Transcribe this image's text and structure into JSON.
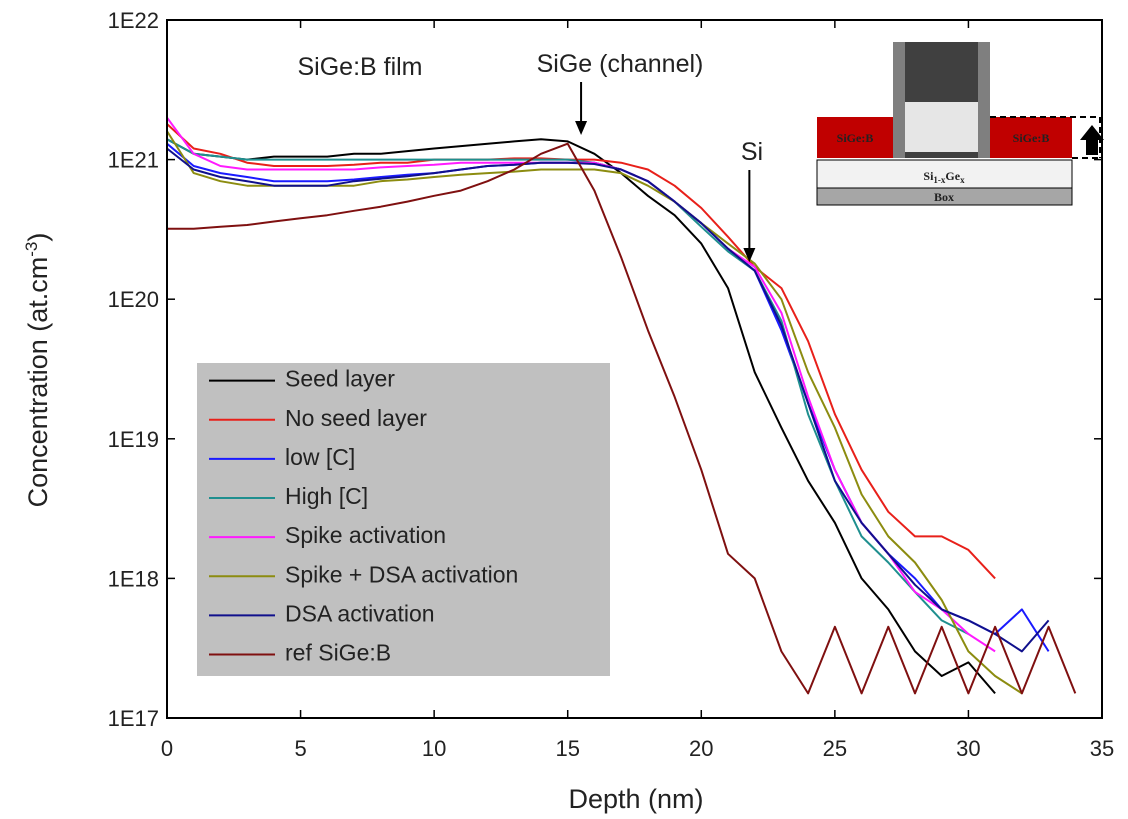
{
  "chart_data": {
    "type": "line",
    "x_label": "Depth (nm)",
    "y_label": [
      "Concentration (at.cm",
      "-3",
      ")"
    ],
    "xlim": [
      0,
      35
    ],
    "xticks": [
      0,
      5,
      10,
      15,
      20,
      25,
      30,
      35
    ],
    "ylim": [
      1e+17,
      1e+22
    ],
    "yticks": [
      {
        "value": 1e+17,
        "label": "1E17"
      },
      {
        "value": 1e+18,
        "label": "1E18"
      },
      {
        "value": 1e+19,
        "label": "1E19"
      },
      {
        "value": 1e+20,
        "label": "1E20"
      },
      {
        "value": 1e+21,
        "label": "1E21"
      },
      {
        "value": 1e+22,
        "label": "1E22"
      }
    ],
    "log_y": true,
    "legend": "lower left",
    "annotations": [
      {
        "text": "SiGe:B film"
      },
      {
        "text": "SiGe (channel)",
        "arrow_x": 15.5
      },
      {
        "text": "Si",
        "arrow_x": 21.8
      }
    ],
    "inset": {
      "left_label": "SiGe:B",
      "right_label": "SiGe:B",
      "layer_label": [
        "Si",
        "1-x",
        "Ge",
        "x"
      ],
      "box_label": "Box"
    },
    "x": [
      0,
      1,
      2,
      3,
      4,
      5,
      6,
      7,
      8,
      9,
      10,
      11,
      12,
      13,
      14,
      15,
      16,
      17,
      18,
      19,
      20,
      21,
      22,
      23,
      24,
      25,
      26,
      27,
      28,
      29,
      30,
      31,
      32,
      33,
      34
    ],
    "series": [
      {
        "name": "Seed layer",
        "color": "#000000",
        "values": [
          1.4e+21,
          1.1e+21,
          1.05e+21,
          1e+21,
          1.05e+21,
          1.05e+21,
          1.05e+21,
          1.1e+21,
          1.1e+21,
          1.15e+21,
          1.2e+21,
          1.25e+21,
          1.3e+21,
          1.35e+21,
          1.4e+21,
          1.35e+21,
          1.1e+21,
          8e+20,
          5.5e+20,
          4e+20,
          2.5e+20,
          1.2e+20,
          3e+19,
          1.2e+19,
          5e+18,
          2.5e+18,
          1e+18,
          6e+17,
          3e+17,
          2e+17,
          2.5e+17,
          1.5e+17,
          null,
          null,
          null
        ]
      },
      {
        "name": "No seed layer",
        "color": "#e8201a",
        "values": [
          1.8e+21,
          1.2e+21,
          1.1e+21,
          9.5e+20,
          9e+20,
          9e+20,
          9e+20,
          9.2e+20,
          9.5e+20,
          9.5e+20,
          1e+21,
          1e+21,
          1e+21,
          1.02e+21,
          1.02e+21,
          1e+21,
          1e+21,
          9.5e+20,
          8.5e+20,
          6.5e+20,
          4.5e+20,
          2.8e+20,
          1.7e+20,
          1.2e+20,
          5e+19,
          1.5e+19,
          6e+18,
          3e+18,
          2e+18,
          2e+18,
          1.6e+18,
          1e+18,
          null,
          null,
          null
        ]
      },
      {
        "name": "low [C]",
        "color": "#1a1aff",
        "values": [
          1.3e+21,
          9e+20,
          8e+20,
          7.5e+20,
          7e+20,
          7e+20,
          7e+20,
          7.2e+20,
          7.5e+20,
          7.8e+20,
          8e+20,
          8.5e+20,
          9e+20,
          9.2e+20,
          9.5e+20,
          9.5e+20,
          9.5e+20,
          8.5e+20,
          7e+20,
          5e+20,
          3.5e+20,
          2.3e+20,
          1.6e+20,
          6e+19,
          1.8e+19,
          6e+18,
          2.5e+18,
          1.5e+18,
          1e+18,
          6e+17,
          5e+17,
          4e+17,
          6e+17,
          3e+17,
          null
        ]
      },
      {
        "name": "High [C]",
        "color": "#1f8f8f",
        "values": [
          1.4e+21,
          1.1e+21,
          1.05e+21,
          1e+21,
          1e+21,
          1e+21,
          1e+21,
          1e+21,
          1e+21,
          1e+21,
          1e+21,
          1e+21,
          1e+21,
          1e+21,
          1e+21,
          1e+21,
          9.5e+20,
          8.5e+20,
          7e+20,
          5e+20,
          3.3e+20,
          2.2e+20,
          1.6e+20,
          7e+19,
          1.5e+19,
          5e+18,
          2e+18,
          1.3e+18,
          8e+17,
          5e+17,
          4e+17,
          null,
          null,
          null,
          null
        ]
      },
      {
        "name": "Spike activation",
        "color": "#ff1aff",
        "values": [
          2e+21,
          1.1e+21,
          9e+20,
          8.5e+20,
          8.5e+20,
          8.5e+20,
          8.5e+20,
          8.5e+20,
          8.8e+20,
          9e+20,
          9.2e+20,
          9.5e+20,
          9.5e+20,
          9.5e+20,
          9.5e+20,
          9.5e+20,
          9.5e+20,
          8.5e+20,
          7e+20,
          5e+20,
          3.5e+20,
          2.3e+20,
          1.7e+20,
          8e+19,
          2e+19,
          6e+18,
          2.5e+18,
          1.5e+18,
          8e+17,
          6e+17,
          4e+17,
          3e+17,
          null,
          null,
          null
        ]
      },
      {
        "name": "Spike + DSA activation",
        "color": "#8c8c10",
        "values": [
          1.6e+21,
          8e+20,
          7e+20,
          6.5e+20,
          6.5e+20,
          6.5e+20,
          6.5e+20,
          6.5e+20,
          7e+20,
          7.2e+20,
          7.5e+20,
          7.8e+20,
          8e+20,
          8.2e+20,
          8.5e+20,
          8.5e+20,
          8.5e+20,
          8e+20,
          6.5e+20,
          5e+20,
          3.5e+20,
          2.5e+20,
          1.8e+20,
          1e+20,
          3e+19,
          1.2e+19,
          4e+18,
          2e+18,
          1.3e+18,
          7e+17,
          3e+17,
          2e+17,
          1.5e+17,
          null,
          null
        ]
      },
      {
        "name": "DSA activation",
        "color": "#10108c",
        "values": [
          1.2e+21,
          8.5e+20,
          7.5e+20,
          7e+20,
          6.5e+20,
          6.5e+20,
          6.5e+20,
          7e+20,
          7.3e+20,
          7.6e+20,
          8e+20,
          8.5e+20,
          9e+20,
          9.2e+20,
          9.5e+20,
          9.5e+20,
          9.3e+20,
          8.5e+20,
          7e+20,
          5e+20,
          3.5e+20,
          2.3e+20,
          1.6e+20,
          6.5e+19,
          1.8e+19,
          5e+18,
          2.5e+18,
          1.5e+18,
          9e+17,
          6e+17,
          5e+17,
          4e+17,
          3e+17,
          5e+17,
          null
        ]
      },
      {
        "name": "ref SiGe:B",
        "color": "#7f1010",
        "values": [
          3.2e+20,
          3.2e+20,
          3.3e+20,
          3.4e+20,
          3.6e+20,
          3.8e+20,
          4e+20,
          4.3e+20,
          4.6e+20,
          5e+20,
          5.5e+20,
          6e+20,
          7e+20,
          8.5e+20,
          1.1e+21,
          1.3e+21,
          6e+20,
          2e+20,
          6e+19,
          2e+19,
          6e+18,
          1.5e+18,
          1e+18,
          3e+17,
          1.5e+17,
          4.5e+17,
          1.5e+17,
          4.5e+17,
          1.5e+17,
          4.5e+17,
          1.5e+17,
          4.5e+17,
          1.5e+17,
          4.5e+17,
          1.5e+17
        ]
      }
    ]
  }
}
